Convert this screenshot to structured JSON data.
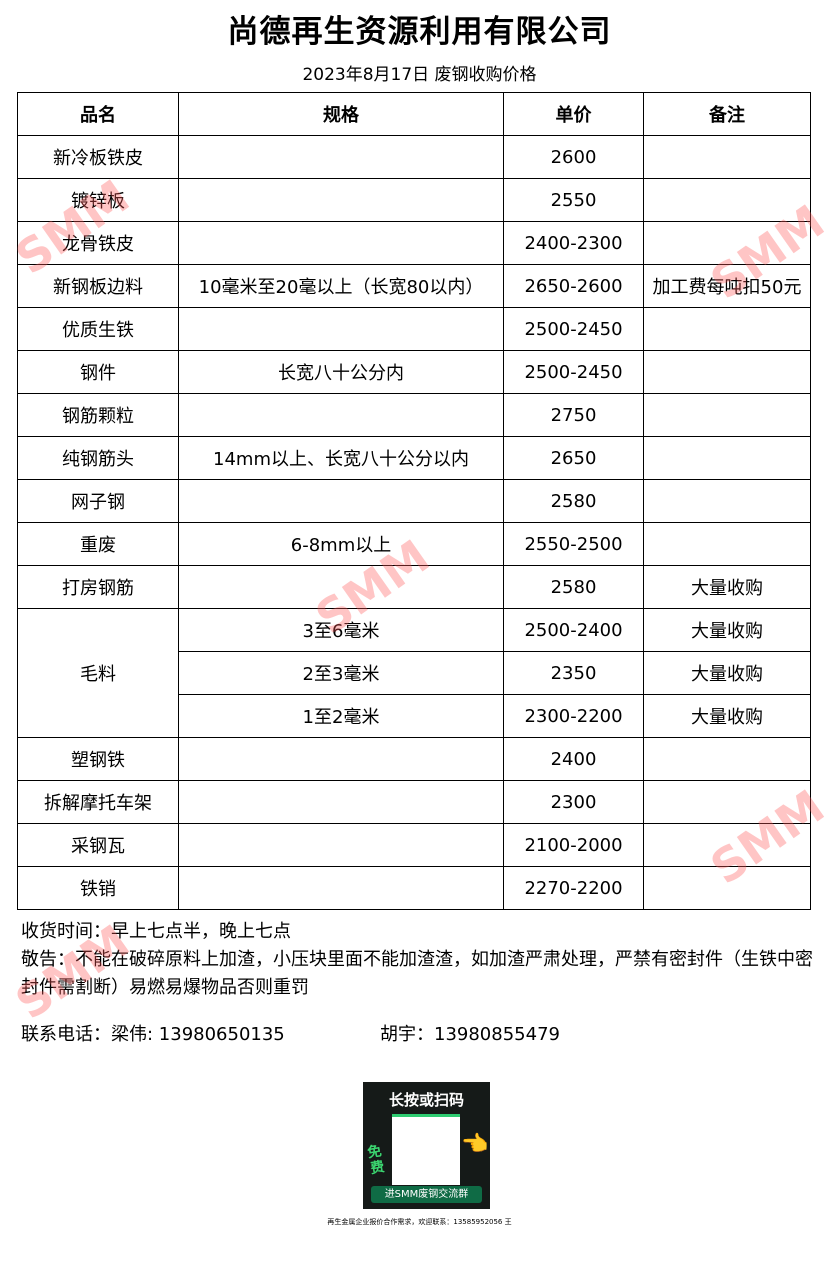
{
  "title": "尚德再生资源利用有限公司",
  "subtitle": "2023年8月17日 废钢收购价格",
  "table": {
    "headers": [
      "品名",
      "规格",
      "单价",
      "备注"
    ],
    "rows": [
      {
        "name": "新冷板铁皮",
        "spec": "",
        "price": "2600",
        "note": ""
      },
      {
        "name": "镀锌板",
        "spec": "",
        "price": "2550",
        "note": ""
      },
      {
        "name": "龙骨铁皮",
        "spec": "",
        "price": "2400-2300",
        "note": ""
      },
      {
        "name": "新钢板边料",
        "spec": "10毫米至20毫以上（长宽80以内）",
        "price": "2650-2600",
        "note": "加工费每吨扣50元"
      },
      {
        "name": "优质生铁",
        "spec": "",
        "price": "2500-2450",
        "note": ""
      },
      {
        "name": "钢件",
        "spec": "长宽八十公分内",
        "price": "2500-2450",
        "note": ""
      },
      {
        "name": "钢筋颗粒",
        "spec": "",
        "price": "2750",
        "note": ""
      },
      {
        "name": "纯钢筋头",
        "spec": "14mm以上、长宽八十公分以内",
        "price": "2650",
        "note": ""
      },
      {
        "name": "网子钢",
        "spec": "",
        "price": "2580",
        "note": ""
      },
      {
        "name": "重废",
        "spec": "6-8mm以上",
        "price": "2550-2500",
        "note": ""
      },
      {
        "name": "打房钢筋",
        "spec": "",
        "price": "2580",
        "note": "大量收购"
      }
    ],
    "maoliao": {
      "name": "毛料",
      "subs": [
        {
          "spec": "3至6毫米",
          "price": "2500-2400",
          "note": "大量收购"
        },
        {
          "spec": "2至3毫米",
          "price": "2350",
          "note": "大量收购"
        },
        {
          "spec": "1至2毫米",
          "price": "2300-2200",
          "note": "大量收购"
        }
      ]
    },
    "rows2": [
      {
        "name": "塑钢铁",
        "spec": "",
        "price": "2400",
        "note": ""
      },
      {
        "name": "拆解摩托车架",
        "spec": "",
        "price": "2300",
        "note": ""
      },
      {
        "name": "采钢瓦",
        "spec": "",
        "price": "2100-2000",
        "note": ""
      },
      {
        "name": "铁销",
        "spec": "",
        "price": "2270-2200",
        "note": ""
      }
    ]
  },
  "notes": {
    "hours": "收货时间：早上七点半，晚上七点",
    "warning": "敬告：不能在破碎原料上加渣，小压块里面不能加渣渣，如加渣严肃处理，严禁有密封件（生铁中密封件需割断）易燃易爆物品否则重罚"
  },
  "contact": {
    "label1": "联系电话：梁伟: 13980650135",
    "label2": "胡宇：13980855479"
  },
  "qr": {
    "heading": "长按或扫码",
    "badge": "免费",
    "button": "进SMM废钢交流群"
  },
  "footer": "再生金属企业报价合作需求，欢迎联系：13585952056 王",
  "watermark": "SMM"
}
